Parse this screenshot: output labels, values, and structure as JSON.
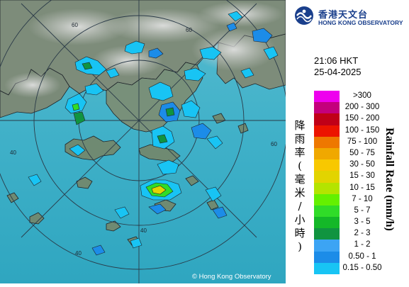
{
  "header": {
    "org_name_zh": "香港天文台",
    "org_name_en": "HONG KONG OBSERVATORY"
  },
  "timestamp": {
    "time": "21:06 HKT",
    "date": "25-04-2025"
  },
  "legend": {
    "title_zh": "降雨率(毫米/小時)",
    "title_en": "Rainfall Rate (mm/h)",
    "items": [
      {
        "label": ">300",
        "color": "#ee00ee"
      },
      {
        "label": "200 - 300",
        "color": "#c4007c"
      },
      {
        "label": "150 - 200",
        "color": "#c00018"
      },
      {
        "label": "100 - 150",
        "color": "#ec1400"
      },
      {
        "label": "75 - 100",
        "color": "#ee7800"
      },
      {
        "label": "50 - 75",
        "color": "#f0a800"
      },
      {
        "label": "30 - 50",
        "color": "#f8c800"
      },
      {
        "label": "15 - 30",
        "color": "#e2d400"
      },
      {
        "label": "10 - 15",
        "color": "#b4e400"
      },
      {
        "label": "7 - 10",
        "color": "#64f000"
      },
      {
        "label": "5 - 7",
        "color": "#30dc28"
      },
      {
        "label": "3 - 5",
        "color": "#14b828"
      },
      {
        "label": "2 - 3",
        "color": "#109440"
      },
      {
        "label": "1 - 2",
        "color": "#3ca4f4"
      },
      {
        "label": "0.50 - 1",
        "color": "#1c8ce8"
      },
      {
        "label": "0.15 - 0.50",
        "color": "#18c4f4"
      }
    ]
  },
  "map": {
    "range_ring_labels": [
      "60",
      "60",
      "60",
      "40",
      "40",
      "40"
    ],
    "copyright": "© Hong Kong Observatory",
    "colors": {
      "sea": "#44b4cc",
      "land": "#7a8a78",
      "grid": "#2a3a48"
    }
  }
}
